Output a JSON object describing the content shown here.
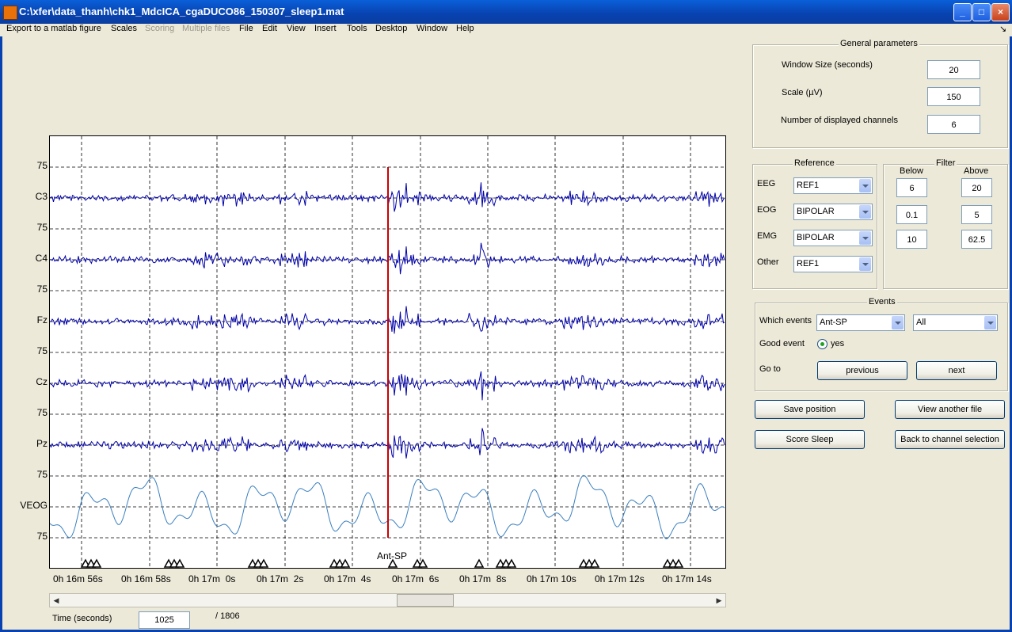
{
  "window": {
    "title": "C:\\xfer\\data_thanh\\chk1_MdcICA_cgaDUCO86_150307_sleep1.mat"
  },
  "menu": [
    {
      "label": "Export to a matlab figure",
      "enabled": true
    },
    {
      "label": "Scales",
      "enabled": true
    },
    {
      "label": "Scoring",
      "enabled": false
    },
    {
      "label": "Multiple files",
      "enabled": false
    },
    {
      "label": "File",
      "enabled": true
    },
    {
      "label": "Edit",
      "enabled": true
    },
    {
      "label": "View",
      "enabled": true
    },
    {
      "label": "Insert",
      "enabled": true
    },
    {
      "label": "Tools",
      "enabled": true
    },
    {
      "label": "Desktop",
      "enabled": true
    },
    {
      "label": "Window",
      "enabled": true
    },
    {
      "label": "Help",
      "enabled": true
    }
  ],
  "plot": {
    "y_labels": [
      "75",
      "C3",
      "75",
      "C4",
      "75",
      "Fz",
      "75",
      "Cz",
      "75",
      "Pz",
      "75",
      "VEOG",
      "75"
    ],
    "x_labels": [
      "0h 16m 56s",
      "0h 16m 58s",
      "0h 17m  0s",
      "0h 17m  2s",
      "0h 17m  4s",
      "0h 17m  6s",
      "0h 17m  8s",
      "0h 17m 10s",
      "0h 17m 12s",
      "0h 17m 14s"
    ],
    "event_label": "Ant-SP",
    "eeg_color": "#0000aa",
    "veog_color": "#3a7fbf",
    "marker_color": "#cc0000"
  },
  "time": {
    "label": "Time (seconds)",
    "value": "1025",
    "total": "/ 1806"
  },
  "general": {
    "title": "General parameters",
    "window_size_label": "Window Size (seconds)",
    "window_size": "20",
    "scale_label": "Scale (µV)",
    "scale": "150",
    "channels_label": "Number of displayed channels",
    "channels": "6"
  },
  "reference": {
    "title": "Reference",
    "rows": [
      {
        "label": "EEG",
        "value": "REF1"
      },
      {
        "label": "EOG",
        "value": "BIPOLAR"
      },
      {
        "label": "EMG",
        "value": "BIPOLAR"
      },
      {
        "label": "Other",
        "value": "REF1"
      }
    ]
  },
  "filter": {
    "title": "Filter",
    "below_label": "Below",
    "above_label": "Above",
    "rows": [
      {
        "below": "6",
        "above": "20"
      },
      {
        "below": "0.1",
        "above": "5"
      },
      {
        "below": "10",
        "above": "62.5"
      }
    ]
  },
  "events": {
    "title": "Events",
    "which_label": "Which events",
    "which_value": "Ant-SP",
    "filter_value": "All",
    "good_label": "Good event",
    "good_value": "yes",
    "goto_label": "Go to",
    "previous": "previous",
    "next": "next"
  },
  "buttons": {
    "save_position": "Save position",
    "view_another": "View another file",
    "score_sleep": "Score Sleep",
    "back_channel": "Back to channel selection"
  }
}
